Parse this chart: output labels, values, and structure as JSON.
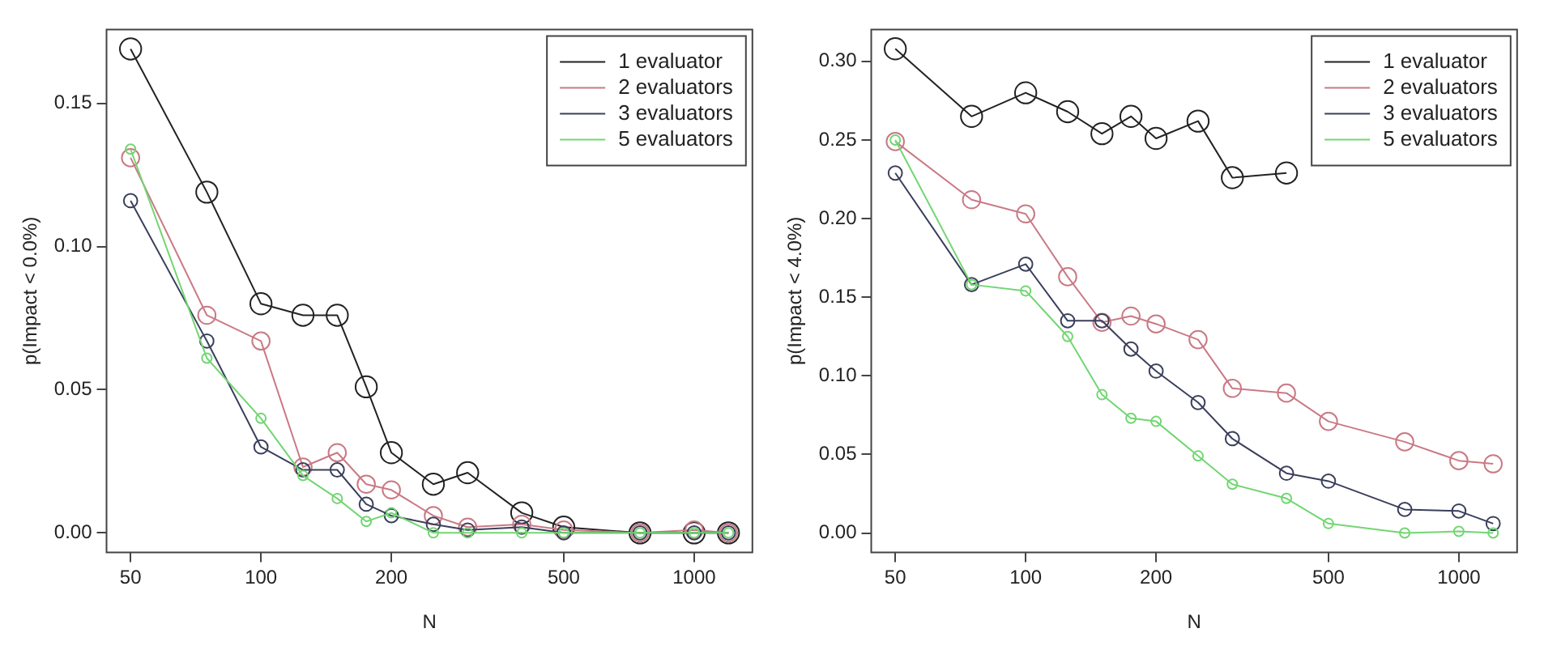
{
  "chart_data": [
    {
      "type": "line",
      "xlabel": "N",
      "ylabel": "p(Impact < 0.0%)",
      "log": "x",
      "grid": false,
      "legend": "top right",
      "marker": "circle",
      "x": [
        50,
        75,
        100,
        125,
        150,
        175,
        200,
        250,
        300,
        400,
        500,
        750,
        1000,
        1200
      ],
      "xlim": [
        44,
        1363
      ],
      "xticks": [
        50,
        100,
        200,
        500,
        1000
      ],
      "ylim": [
        -0.0068,
        0.1758
      ],
      "yticks": [
        {
          "value": 0,
          "label": "0.00"
        },
        {
          "value": 0.05,
          "label": "0.05"
        },
        {
          "value": 0.1,
          "label": "0.10"
        },
        {
          "value": 0.15,
          "label": "0.15"
        }
      ],
      "series": [
        {
          "name": "1 evaluator",
          "color": "#222222",
          "values": [
            0.169,
            0.119,
            0.08,
            0.076,
            0.076,
            0.051,
            0.028,
            0.017,
            0.021,
            0.007,
            0.002,
            0.0,
            0.0,
            0.0
          ]
        },
        {
          "name": "2 evaluators",
          "color": "#c97a85",
          "values": [
            0.131,
            0.076,
            0.067,
            0.023,
            0.028,
            0.017,
            0.015,
            0.006,
            0.002,
            0.003,
            0.001,
            0.0,
            0.001,
            0.0
          ]
        },
        {
          "name": "3 evaluators",
          "color": "#3a3f5c",
          "values": [
            0.116,
            0.067,
            0.03,
            0.022,
            0.022,
            0.01,
            0.006,
            0.003,
            0.001,
            0.002,
            0.0,
            0.0,
            0.0,
            0.0
          ]
        },
        {
          "name": "5 evaluators",
          "color": "#72d672",
          "values": [
            0.134,
            0.061,
            0.04,
            0.02,
            0.012,
            0.004,
            0.007,
            0.0,
            0.0,
            0.0,
            0.0,
            0.0,
            0.0,
            0.0
          ]
        }
      ]
    },
    {
      "type": "line",
      "xlabel": "N",
      "ylabel": "p(Impact < 4.0%)",
      "log": "x",
      "grid": false,
      "legend": "top right",
      "marker": "circle",
      "x": [
        50,
        75,
        100,
        125,
        150,
        175,
        200,
        250,
        300,
        400,
        500,
        750,
        1000,
        1200
      ],
      "xlim": [
        44,
        1363
      ],
      "xticks": [
        50,
        100,
        200,
        500,
        1000
      ],
      "ylim": [
        -0.0123,
        0.3203
      ],
      "yticks": [
        {
          "value": 0,
          "label": "0.00"
        },
        {
          "value": 0.05,
          "label": "0.05"
        },
        {
          "value": 0.1,
          "label": "0.10"
        },
        {
          "value": 0.15,
          "label": "0.15"
        },
        {
          "value": 0.2,
          "label": "0.20"
        },
        {
          "value": 0.25,
          "label": "0.25"
        },
        {
          "value": 0.3,
          "label": "0.30"
        }
      ],
      "series": [
        {
          "name": "1 evaluator",
          "color": "#222222",
          "values": [
            0.308,
            0.265,
            0.28,
            0.268,
            0.254,
            0.265,
            0.251,
            0.262,
            0.226,
            0.229,
            null,
            null,
            null,
            null
          ]
        },
        {
          "name": "2 evaluators",
          "color": "#c97a85",
          "values": [
            0.249,
            0.212,
            0.203,
            0.163,
            0.134,
            0.138,
            0.133,
            0.123,
            0.092,
            0.089,
            0.071,
            0.058,
            0.046,
            0.044
          ]
        },
        {
          "name": "3 evaluators",
          "color": "#3a3f5c",
          "values": [
            0.229,
            0.158,
            0.171,
            0.135,
            0.135,
            0.117,
            0.103,
            0.083,
            0.06,
            0.038,
            0.033,
            0.015,
            0.014,
            0.006
          ]
        },
        {
          "name": "5 evaluators",
          "color": "#72d672",
          "values": [
            0.25,
            0.158,
            0.154,
            0.125,
            0.088,
            0.073,
            0.071,
            0.049,
            0.031,
            0.022,
            0.006,
            0.0,
            0.001,
            0.0
          ]
        }
      ]
    }
  ]
}
